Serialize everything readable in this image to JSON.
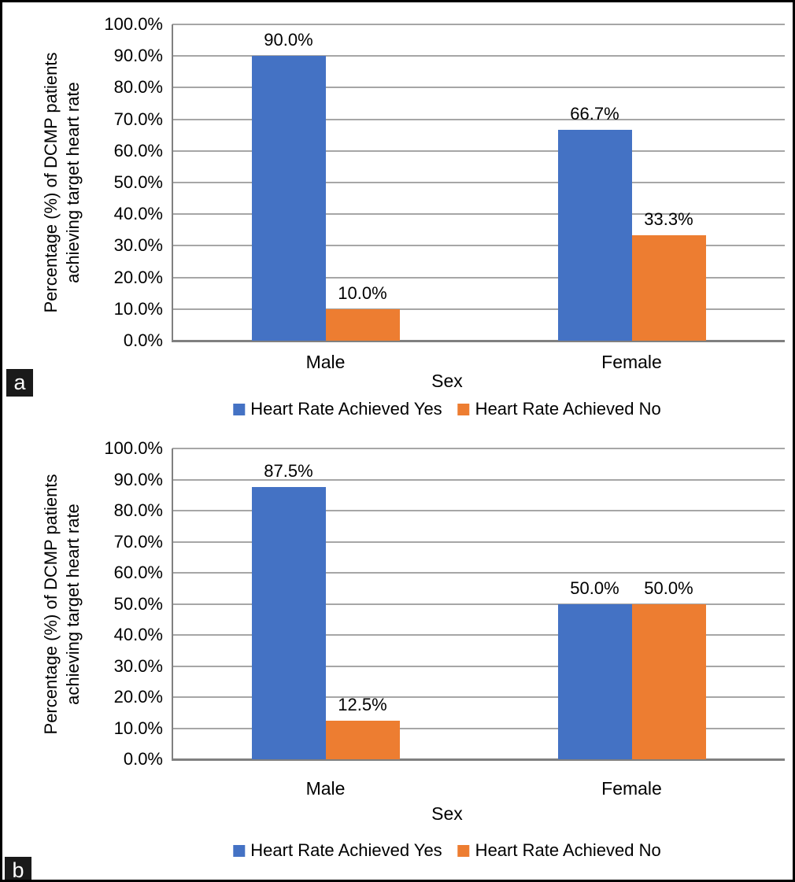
{
  "style": {
    "series_yes_color": "#4472C4",
    "series_no_color": "#ED7D31",
    "gridline_color": "#A6A6A6",
    "axis_color": "#808080",
    "panel_tag_bg": "#1a1a1a",
    "panel_tag_fg": "#ffffff"
  },
  "chart_data": [
    {
      "type": "bar",
      "panel_label": "a",
      "title": "",
      "categories": [
        "Male",
        "Female"
      ],
      "series": [
        {
          "name": "Heart Rate Achieved Yes",
          "color": "#4472C4",
          "values": [
            90.0,
            66.7
          ],
          "value_labels": [
            "90.0%",
            "66.7%"
          ]
        },
        {
          "name": "Heart Rate Achieved No",
          "color": "#ED7D31",
          "values": [
            10.0,
            33.3
          ],
          "value_labels": [
            "10.0%",
            "33.3%"
          ]
        }
      ],
      "xlabel": "Sex",
      "ylabel": "Percentage (%) of DCMP patients achieving target heart rate",
      "ylabel_lines": [
        "Percentage (%) of DCMP patients",
        "achieving target heart rate"
      ],
      "ylim": [
        0,
        100
      ],
      "ytick_labels": [
        "0.0%",
        "10.0%",
        "20.0%",
        "30.0%",
        "40.0%",
        "50.0%",
        "60.0%",
        "70.0%",
        "80.0%",
        "90.0%",
        "100.0%"
      ],
      "grid": true,
      "legend_position": "bottom"
    },
    {
      "type": "bar",
      "panel_label": "b",
      "title": "",
      "categories": [
        "Male",
        "Female"
      ],
      "series": [
        {
          "name": "Heart Rate Achieved Yes",
          "color": "#4472C4",
          "values": [
            87.5,
            50.0
          ],
          "value_labels": [
            "87.5%",
            "50.0%"
          ]
        },
        {
          "name": "Heart Rate Achieved No",
          "color": "#ED7D31",
          "values": [
            12.5,
            50.0
          ],
          "value_labels": [
            "12.5%",
            "50.0%"
          ]
        }
      ],
      "xlabel": "Sex",
      "ylabel": "Percentage (%) of DCMP patients achieving target heart rate",
      "ylabel_lines": [
        "Percentage (%) of DCMP patients",
        "achieving target heart rate"
      ],
      "ylim": [
        0,
        100
      ],
      "ytick_labels": [
        "0.0%",
        "10.0%",
        "20.0%",
        "30.0%",
        "40.0%",
        "50.0%",
        "60.0%",
        "70.0%",
        "80.0%",
        "90.0%",
        "100.0%"
      ],
      "grid": true,
      "legend_position": "bottom"
    }
  ]
}
